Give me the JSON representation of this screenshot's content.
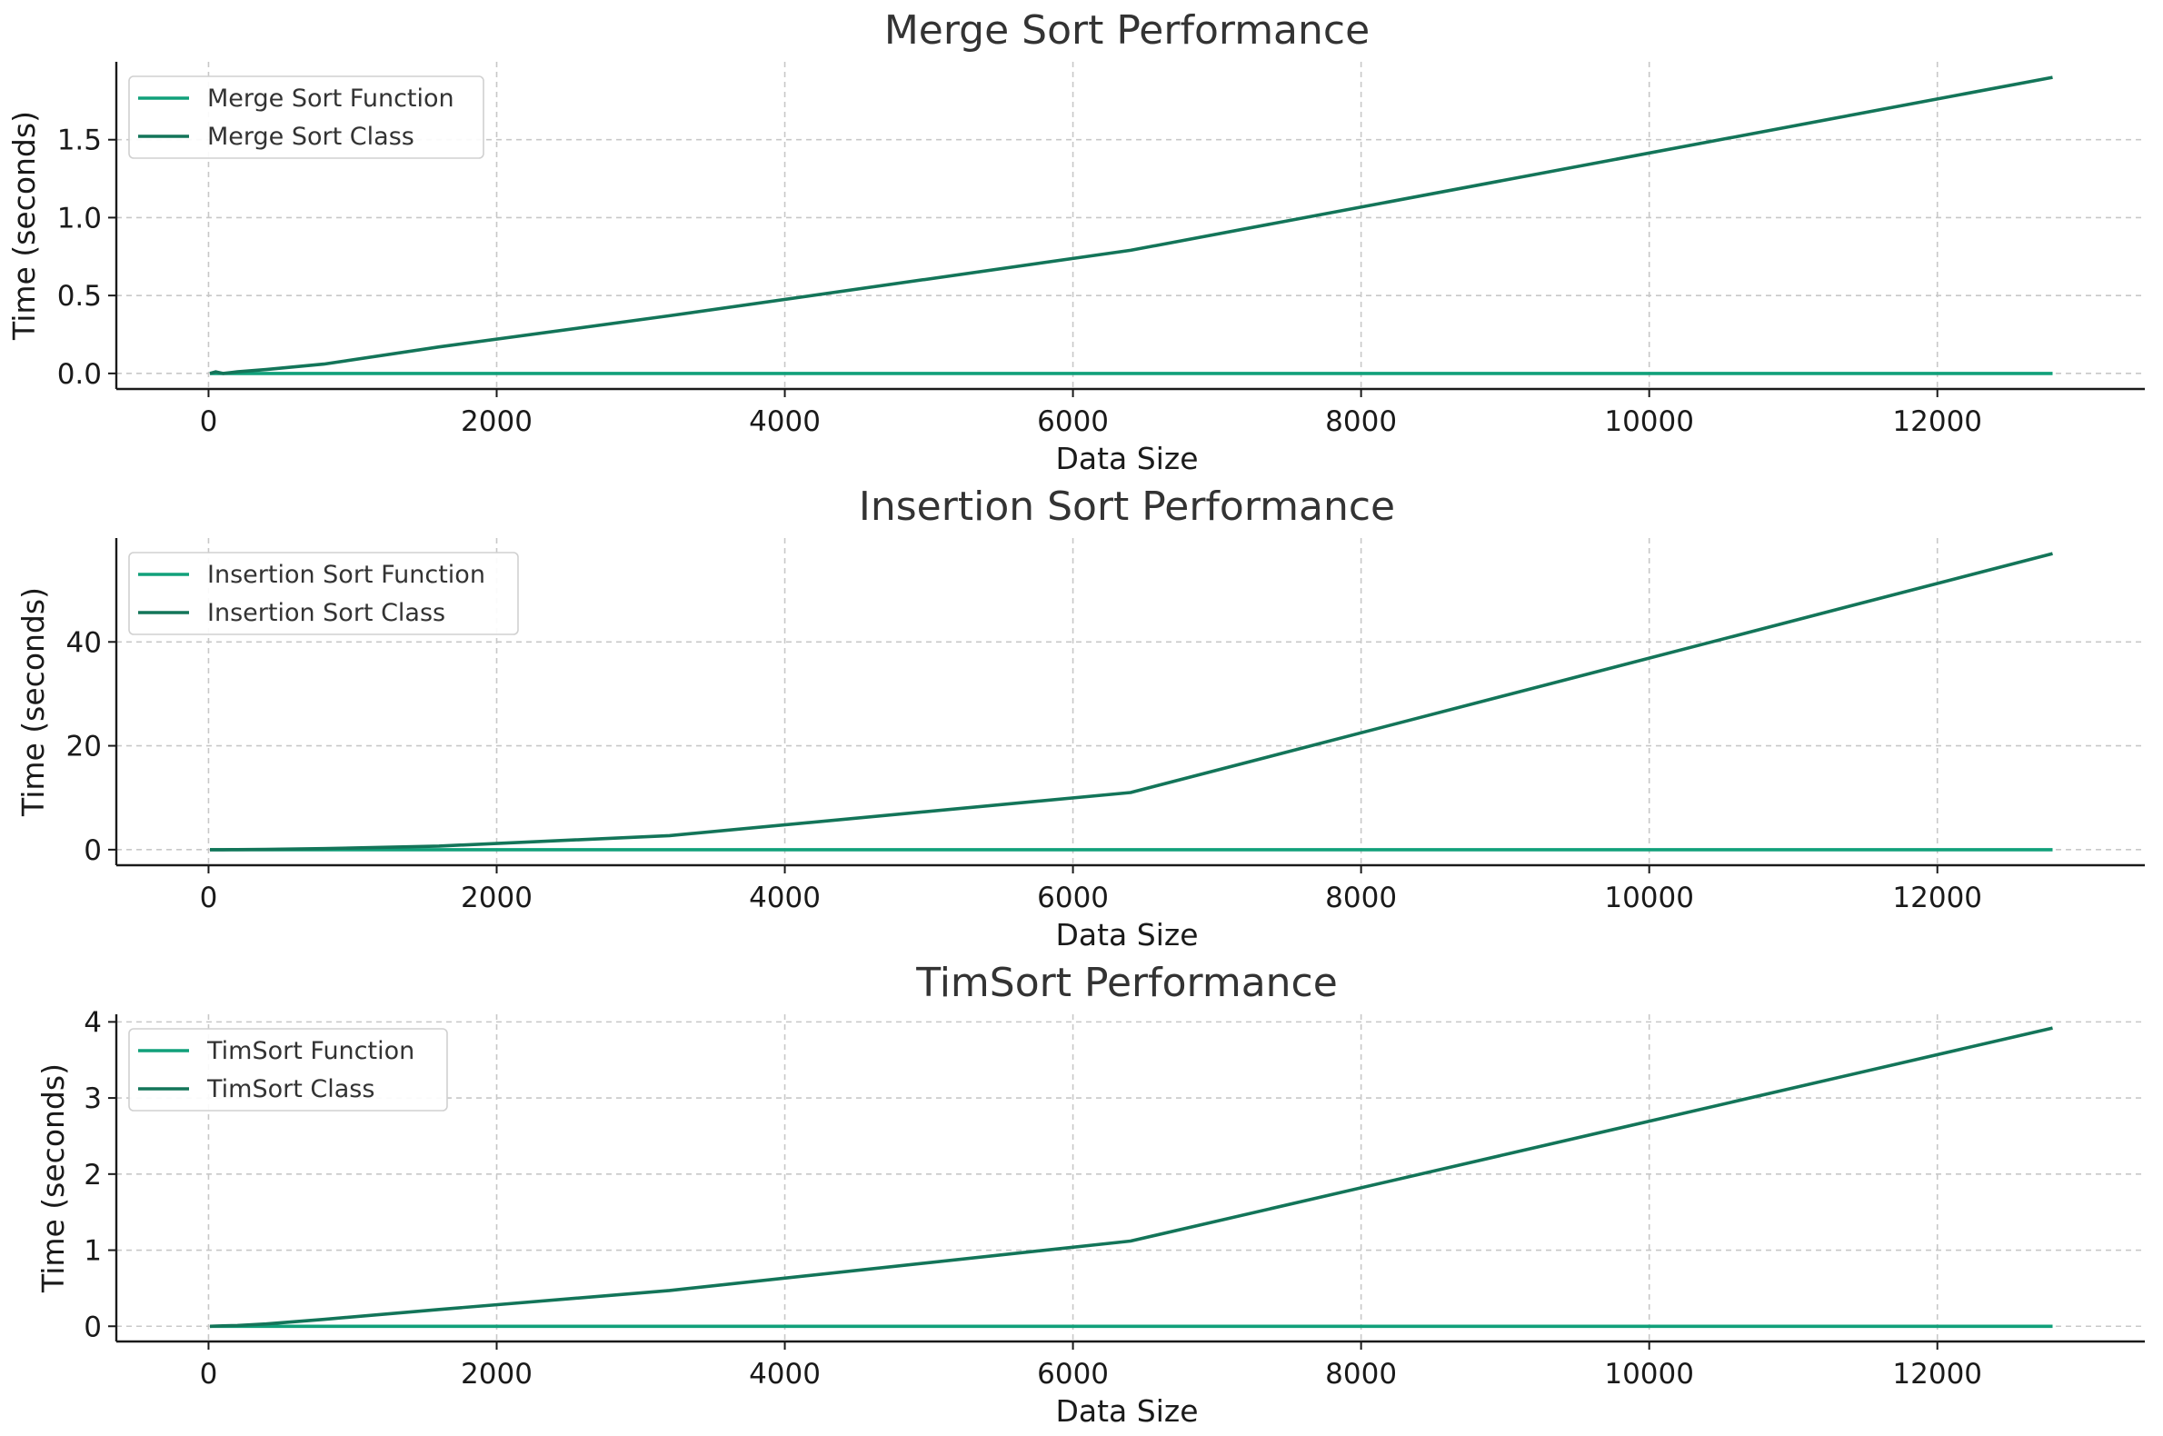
{
  "chart_data": [
    {
      "type": "line",
      "title": "Merge Sort Performance",
      "xlabel": "Data Size",
      "ylabel": "Time (seconds)",
      "xlim": [
        -640,
        13440
      ],
      "ylim": [
        -0.1,
        2.0
      ],
      "xticks": [
        0,
        2000,
        4000,
        6000,
        8000,
        10000,
        12000
      ],
      "yticks": [
        0.0,
        0.5,
        1.0,
        1.5
      ],
      "ytick_labels": [
        "0.0",
        "0.5",
        "1.0",
        "1.5"
      ],
      "grid": true,
      "legend_position": "upper left",
      "series": [
        {
          "name": "Merge Sort Function",
          "color": "#11a07a",
          "x": [
            10,
            50,
            100,
            200,
            400,
            800,
            1600,
            3200,
            6400,
            12800
          ],
          "y": [
            0.0,
            0.0,
            0.0,
            0.0,
            0.0,
            0.0,
            0.0,
            0.0,
            0.0,
            0.0
          ]
        },
        {
          "name": "Merge Sort Class",
          "color": "#137559",
          "x": [
            10,
            50,
            100,
            200,
            400,
            800,
            1600,
            3200,
            6400,
            12800
          ],
          "y": [
            0.0,
            0.01,
            0.0,
            0.01,
            0.025,
            0.06,
            0.17,
            0.37,
            0.79,
            1.9
          ]
        }
      ]
    },
    {
      "type": "line",
      "title": "Insertion Sort Performance",
      "xlabel": "Data Size",
      "ylabel": "Time (seconds)",
      "xlim": [
        -640,
        13440
      ],
      "ylim": [
        -3,
        60
      ],
      "xticks": [
        0,
        2000,
        4000,
        6000,
        8000,
        10000,
        12000
      ],
      "yticks": [
        0,
        20,
        40
      ],
      "ytick_labels": [
        "0",
        "20",
        "40"
      ],
      "grid": true,
      "legend_position": "upper left",
      "series": [
        {
          "name": "Insertion Sort Function",
          "color": "#11a07a",
          "x": [
            10,
            50,
            100,
            200,
            400,
            800,
            1600,
            3200,
            6400,
            12800
          ],
          "y": [
            0.0,
            0.0,
            0.0,
            0.0,
            0.0,
            0.0,
            0.0,
            0.0,
            0.0,
            0.0
          ]
        },
        {
          "name": "Insertion Sort Class",
          "color": "#137559",
          "x": [
            10,
            50,
            100,
            200,
            400,
            800,
            1600,
            3200,
            6400,
            12800
          ],
          "y": [
            0.0,
            0.0,
            0.0,
            0.01,
            0.05,
            0.2,
            0.7,
            2.7,
            11.0,
            57.0
          ]
        }
      ]
    },
    {
      "type": "line",
      "title": "TimSort Performance",
      "xlabel": "Data Size",
      "ylabel": "Time (seconds)",
      "xlim": [
        -640,
        13440
      ],
      "ylim": [
        -0.2,
        4.1
      ],
      "xticks": [
        0,
        2000,
        4000,
        6000,
        8000,
        10000,
        12000
      ],
      "yticks": [
        0,
        1,
        2,
        3,
        4
      ],
      "ytick_labels": [
        "0",
        "1",
        "2",
        "3",
        "4"
      ],
      "grid": true,
      "legend_position": "upper left",
      "series": [
        {
          "name": "TimSort Function",
          "color": "#11a07a",
          "x": [
            10,
            50,
            100,
            200,
            400,
            800,
            1600,
            3200,
            6400,
            12800
          ],
          "y": [
            0.0,
            0.0,
            0.0,
            0.0,
            0.0,
            0.0,
            0.0,
            0.0,
            0.0,
            0.0
          ]
        },
        {
          "name": "TimSort Class",
          "color": "#137559",
          "x": [
            10,
            50,
            100,
            200,
            400,
            800,
            1600,
            3200,
            6400,
            12800
          ],
          "y": [
            0.0,
            0.002,
            0.005,
            0.01,
            0.03,
            0.09,
            0.22,
            0.47,
            1.12,
            3.92
          ]
        }
      ]
    }
  ]
}
